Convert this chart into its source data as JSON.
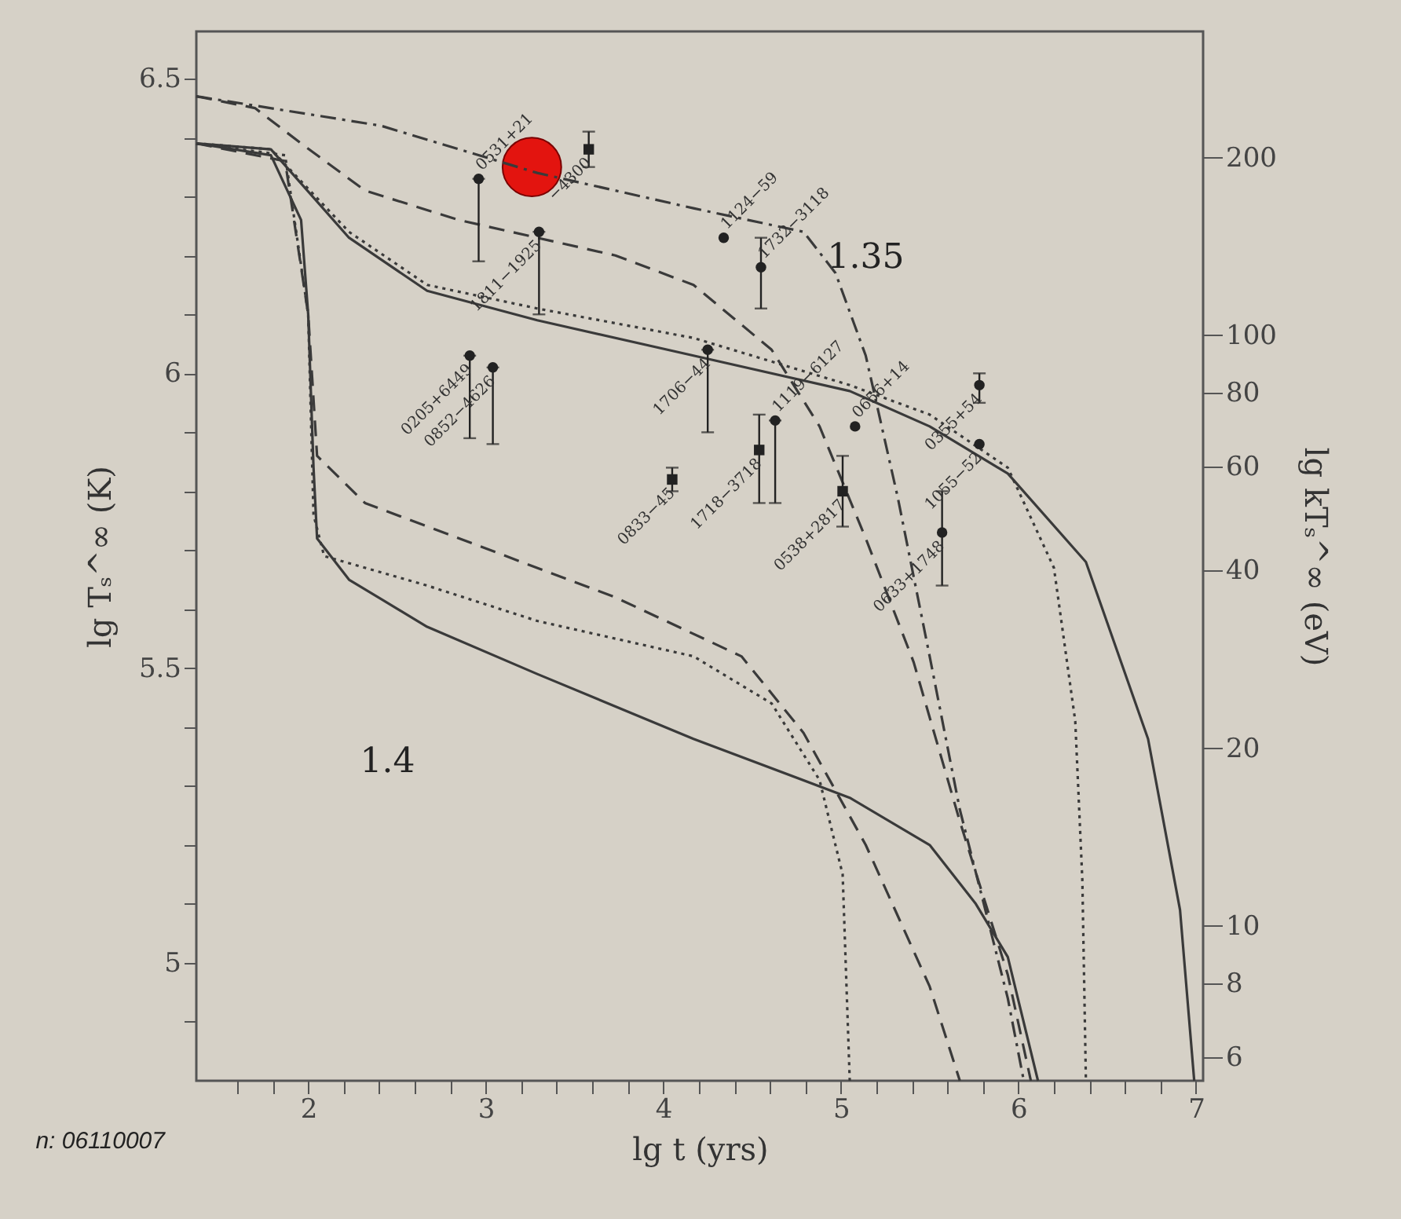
{
  "chart_data": {
    "type": "line",
    "xlabel": "lg t   (yrs)",
    "ylabel": "lg Tₛ^∞ (K)",
    "y2label": "lg kTₛ^∞  (eV)",
    "xlim": [
      1.37,
      7.04
    ],
    "ylim": [
      4.8,
      6.58
    ],
    "y2lim": [
      5.47,
      327
    ],
    "log": "y2",
    "grid": false,
    "xticks": [
      {
        "value": 1.6,
        "label": null
      },
      {
        "value": 1.8,
        "label": null
      },
      2,
      {
        "value": 2.2,
        "label": null
      },
      {
        "value": 2.4,
        "label": null
      },
      {
        "value": 2.6,
        "label": null
      },
      {
        "value": 2.8,
        "label": null
      },
      3,
      {
        "value": 3.2,
        "label": null
      },
      {
        "value": 3.4,
        "label": null
      },
      {
        "value": 3.6,
        "label": null
      },
      {
        "value": 3.8,
        "label": null
      },
      4,
      {
        "value": 4.2,
        "label": null
      },
      {
        "value": 4.4,
        "label": null
      },
      {
        "value": 4.6,
        "label": null
      },
      {
        "value": 4.8,
        "label": null
      },
      5,
      {
        "value": 5.2,
        "label": null
      },
      {
        "value": 5.4,
        "label": null
      },
      {
        "value": 5.6,
        "label": null
      },
      {
        "value": 5.8,
        "label": null
      },
      6,
      {
        "value": 6.2,
        "label": null
      },
      {
        "value": 6.4,
        "label": null
      },
      {
        "value": 6.6,
        "label": null
      },
      {
        "value": 6.8,
        "label": null
      },
      7
    ],
    "yticks": [
      {
        "value": 4.9,
        "label": null
      },
      5,
      {
        "value": 5.1,
        "label": null
      },
      {
        "value": 5.2,
        "label": null
      },
      {
        "value": 5.3,
        "label": null
      },
      {
        "value": 5.4,
        "label": null
      },
      5.5,
      {
        "value": 5.6,
        "label": null
      },
      {
        "value": 5.7,
        "label": null
      },
      {
        "value": 5.8,
        "label": null
      },
      {
        "value": 5.9,
        "label": null
      },
      6,
      {
        "value": 6.1,
        "label": null
      },
      {
        "value": 6.2,
        "label": null
      },
      {
        "value": 6.3,
        "label": null
      },
      {
        "value": 6.4,
        "label": null
      },
      6.5
    ],
    "y2ticks": [
      6,
      8,
      10,
      20,
      40,
      60,
      80,
      100,
      200
    ],
    "annotations": [
      "n: 06110007",
      "1.35",
      "1.4",
      {
        "text": "0531+21",
        "x": 2.96,
        "y": 6.33
      },
      {
        "text": "1811−1925",
        "x": 3.3,
        "y": 6.24
      },
      {
        "text": "0205+6449",
        "x": 2.91,
        "y": 6.03
      },
      {
        "text": "0852−4626",
        "x": 3.04,
        "y": 6.01
      },
      {
        "text": "1706−44",
        "x": 4.25,
        "y": 6.04
      },
      {
        "text": "1119−6127",
        "x": 4.63,
        "y": 5.92
      },
      {
        "text": "1124−59",
        "x": 4.34,
        "y": 6.23
      },
      {
        "text": "1732−3118",
        "x": 4.55,
        "y": 6.18
      },
      {
        "text": "0656+14",
        "x": 5.08,
        "y": 5.91
      },
      {
        "text": "0355+54",
        "x": 5.78,
        "y": 5.98
      },
      {
        "text": "1055−52",
        "x": 5.78,
        "y": 5.88
      },
      {
        "text": "0633+1748",
        "x": 5.57,
        "y": 5.73
      },
      {
        "text": "−4300",
        "x": 3.58,
        "y": 6.38
      },
      {
        "text": "0833−45",
        "x": 4.05,
        "y": 5.82
      },
      {
        "text": "1718−3718",
        "x": 4.54,
        "y": 5.87
      },
      {
        "text": "0538+2817",
        "x": 5.01,
        "y": 5.8
      }
    ],
    "series": [
      {
        "type": "bubble",
        "color": "#e3140f",
        "x": [
          3.26
        ],
        "values": [
          6.35
        ],
        "sizes": [
          1
        ]
      },
      {
        "line_style": "solid",
        "color": "#3a3a3a",
        "x": [
          1.37,
          1.79,
          2.23,
          2.67,
          3.29,
          4.17,
          5.05,
          5.5,
          5.94,
          6.38,
          6.73,
          6.91,
          6.99
        ],
        "values": [
          6.39,
          6.38,
          6.23,
          6.14,
          6.09,
          6.03,
          5.97,
          5.91,
          5.83,
          5.68,
          5.38,
          5.09,
          4.8
        ]
      },
      {
        "line_style": "dotted",
        "color": "#3a3a3a",
        "x": [
          1.37,
          1.79,
          2.23,
          2.67,
          3.29,
          4.17,
          5.05,
          5.5,
          5.94,
          6.2,
          6.32,
          6.36,
          6.38
        ],
        "values": [
          6.39,
          6.38,
          6.24,
          6.15,
          6.11,
          6.06,
          5.98,
          5.93,
          5.84,
          5.67,
          5.41,
          5.14,
          4.8
        ]
      },
      {
        "line_style": "dashed",
        "color": "#3a3a3a",
        "x": [
          1.37,
          1.7,
          1.96,
          2.32,
          2.85,
          3.73,
          4.17,
          4.61,
          4.88,
          5.14,
          5.41,
          5.67,
          5.94,
          6.07
        ],
        "values": [
          6.47,
          6.45,
          6.39,
          6.31,
          6.26,
          6.2,
          6.15,
          6.04,
          5.91,
          5.72,
          5.51,
          5.24,
          4.98,
          4.8
        ]
      },
      {
        "line_style": "dashdot",
        "color": "#3a3a3a",
        "x": [
          1.37,
          2.41,
          3.29,
          4.17,
          4.79,
          4.97,
          5.14,
          5.32,
          5.5,
          5.67,
          5.94,
          6.03
        ],
        "values": [
          6.47,
          6.42,
          6.34,
          6.28,
          6.24,
          6.17,
          6.03,
          5.79,
          5.52,
          5.26,
          4.94,
          4.8
        ]
      },
      {
        "line_style": "solid",
        "color": "#3a3a3a",
        "x": [
          1.37,
          1.79,
          1.96,
          2.0,
          2.03,
          2.05,
          2.23,
          2.67,
          3.29,
          4.17,
          5.05,
          5.5,
          5.76,
          5.94,
          6.11
        ],
        "values": [
          6.39,
          6.37,
          6.26,
          6.1,
          5.84,
          5.72,
          5.65,
          5.57,
          5.49,
          5.38,
          5.28,
          5.2,
          5.1,
          5.01,
          4.8
        ]
      },
      {
        "line_style": "dotted",
        "color": "#3a3a3a",
        "x": [
          1.37,
          1.87,
          2.0,
          2.03,
          2.09,
          2.67,
          3.29,
          4.17,
          4.61,
          4.88,
          5.01,
          5.05
        ],
        "values": [
          6.39,
          6.37,
          6.1,
          5.76,
          5.69,
          5.64,
          5.58,
          5.52,
          5.44,
          5.31,
          5.15,
          4.8
        ]
      },
      {
        "line_style": "dashed",
        "color": "#3a3a3a",
        "x": [
          1.37,
          1.87,
          2.0,
          2.05,
          2.32,
          2.85,
          3.73,
          4.44,
          4.79,
          5.14,
          5.5,
          5.67
        ],
        "values": [
          6.39,
          6.36,
          6.1,
          5.86,
          5.78,
          5.72,
          5.62,
          5.52,
          5.39,
          5.2,
          4.96,
          4.8
        ]
      },
      {
        "type": "scatter",
        "marker": "circle",
        "color": "#222222",
        "x": [
          2.96,
          3.3,
          2.91,
          3.04,
          4.25,
          4.63
        ],
        "values": [
          6.33,
          6.24,
          6.03,
          6.01,
          6.04,
          5.92
        ],
        "errors": [
          [
            6.19,
            6.33
          ],
          [
            6.1,
            6.24
          ],
          [
            5.89,
            6.03
          ],
          [
            5.88,
            6.01
          ],
          [
            5.9,
            6.04
          ],
          [
            5.78,
            5.92
          ]
        ]
      },
      {
        "type": "scatter",
        "marker": "circle",
        "color": "#222222",
        "x": [
          4.34,
          4.55,
          5.08,
          5.78,
          5.78,
          5.57
        ],
        "values": [
          6.23,
          6.18,
          5.91,
          5.98,
          5.88,
          5.73
        ],
        "errors": [
          null,
          [
            6.11,
            6.23
          ],
          null,
          [
            5.95,
            6.0
          ],
          null,
          [
            5.64,
            5.8
          ]
        ]
      },
      {
        "type": "scatter",
        "marker": "square",
        "color": "#222222",
        "x": [
          3.58,
          4.05,
          4.54,
          5.01
        ],
        "values": [
          6.38,
          5.82,
          5.87,
          5.8
        ],
        "errors": [
          [
            6.35,
            6.41
          ],
          [
            5.8,
            5.84
          ],
          [
            5.78,
            5.93
          ],
          [
            5.74,
            5.86
          ]
        ]
      }
    ]
  }
}
